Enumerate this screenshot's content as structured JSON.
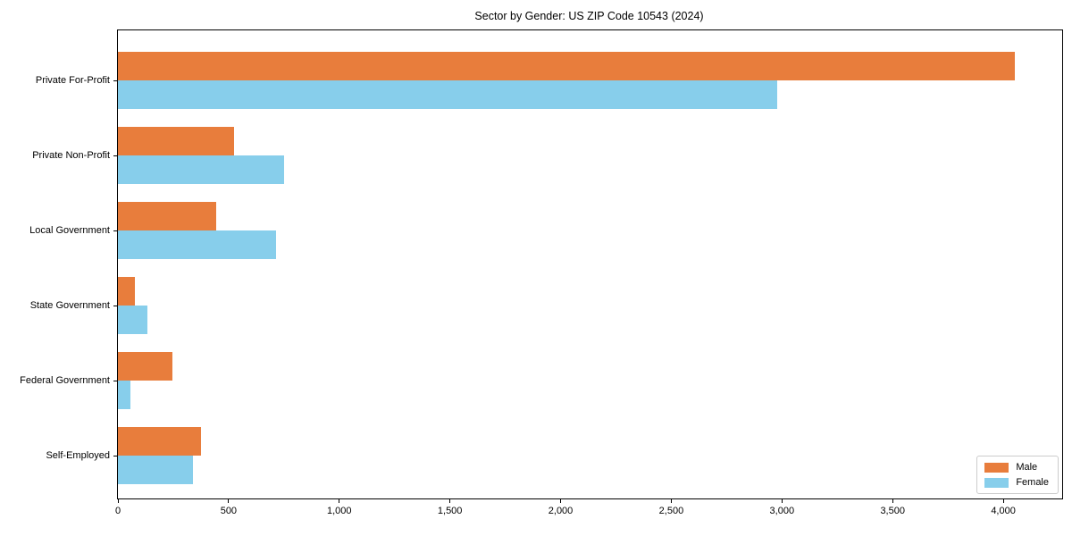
{
  "chart_data": {
    "type": "bar",
    "orientation": "horizontal",
    "title": "Sector by Gender: US ZIP Code 10543 (2024)",
    "categories": [
      "Private For-Profit",
      "Private Non-Profit",
      "Local Government",
      "State Government",
      "Federal Government",
      "Self-Employed"
    ],
    "series": [
      {
        "name": "Male",
        "color": "#e87d3c",
        "values": [
          4050,
          525,
          445,
          78,
          246,
          375
        ]
      },
      {
        "name": "Female",
        "color": "#87ceeb",
        "values": [
          2980,
          750,
          715,
          134,
          57,
          340
        ]
      }
    ],
    "xlabel": "",
    "ylabel": "",
    "xlim": [
      0,
      4266
    ],
    "xticks": [
      0,
      500,
      1000,
      1500,
      2000,
      2500,
      3000,
      3500,
      4000
    ],
    "xtick_labels": [
      "0",
      "500",
      "1,000",
      "1,500",
      "2,000",
      "2,500",
      "3,000",
      "3,500",
      "4,000"
    ],
    "grid": false,
    "legend_position": "lower right",
    "axis_color": "#000000",
    "background_color": "#ffffff"
  }
}
